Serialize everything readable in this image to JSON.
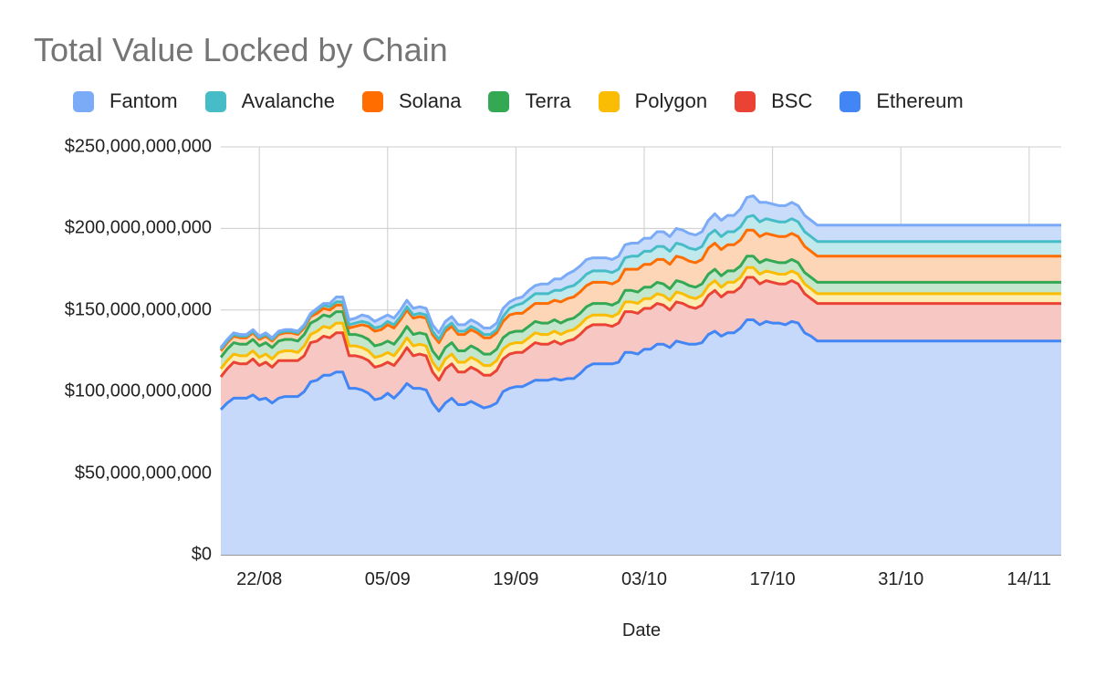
{
  "chart_data": {
    "type": "area",
    "stacked": true,
    "title": "Total Value Locked by Chain",
    "xlabel": "Date",
    "ylabel": "",
    "ylim": [
      0,
      250000000000
    ],
    "y_ticks": [
      {
        "value": 0,
        "label": "$0"
      },
      {
        "value": 50000000000,
        "label": "$50,000,000,000"
      },
      {
        "value": 100000000000,
        "label": "$100,000,000,000"
      },
      {
        "value": 150000000000,
        "label": "$150,000,000,000"
      },
      {
        "value": 200000000000,
        "label": "$200,000,000,000"
      },
      {
        "value": 250000000000,
        "label": "$250,000,000,000"
      }
    ],
    "x_ticks": [
      {
        "index": 6,
        "label": "22/08"
      },
      {
        "index": 26,
        "label": "05/09"
      },
      {
        "index": 46,
        "label": "19/09"
      },
      {
        "index": 66,
        "label": "03/10"
      },
      {
        "index": 86,
        "label": "17/10"
      },
      {
        "index": 106,
        "label": "31/10"
      },
      {
        "index": 126,
        "label": "14/11"
      }
    ],
    "n_points": 132,
    "x_start_label": "16/08",
    "x_end_label": "21/11",
    "legend_position": "top",
    "grid": true,
    "totals_in_billions": {
      "Ethereum": [
        89,
        93,
        96,
        96,
        96,
        98,
        95,
        96,
        93,
        96,
        97,
        97,
        97,
        100,
        106,
        107,
        110,
        110,
        112,
        112,
        102,
        102,
        101,
        99,
        95,
        96,
        99,
        96,
        100,
        105,
        102,
        102,
        101,
        93,
        88,
        93,
        96,
        92,
        92,
        94,
        92,
        90,
        91,
        93,
        100,
        102,
        103,
        103,
        105,
        107,
        107,
        107,
        108,
        107,
        108,
        108,
        111,
        115,
        117,
        117,
        117,
        117,
        118,
        124,
        124,
        123,
        126,
        126,
        129,
        129,
        127,
        131,
        130,
        129,
        129,
        130,
        135,
        137,
        134,
        136,
        136,
        139,
        144,
        144,
        141,
        143,
        142,
        142,
        141,
        143,
        142,
        136,
        134,
        131,
        131,
        131,
        131,
        131,
        131,
        131,
        131,
        131,
        131,
        131,
        131,
        131,
        131,
        131,
        131,
        131,
        131,
        131,
        131,
        131,
        131,
        131,
        131,
        131,
        131,
        131,
        131,
        131,
        131,
        131,
        131,
        131,
        131,
        131,
        131,
        131,
        131,
        131
      ],
      "BSC": [
        109,
        114,
        118,
        117,
        117,
        120,
        116,
        118,
        115,
        119,
        119,
        119,
        119,
        122,
        130,
        131,
        134,
        133,
        136,
        136,
        122,
        122,
        121,
        119,
        115,
        116,
        118,
        116,
        121,
        127,
        122,
        123,
        122,
        112,
        107,
        114,
        117,
        112,
        112,
        115,
        113,
        110,
        110,
        113,
        120,
        123,
        124,
        124,
        127,
        130,
        129,
        129,
        131,
        129,
        131,
        132,
        135,
        139,
        141,
        141,
        141,
        140,
        142,
        149,
        149,
        148,
        151,
        151,
        154,
        153,
        150,
        155,
        154,
        152,
        151,
        153,
        159,
        162,
        158,
        161,
        161,
        164,
        170,
        170,
        166,
        168,
        167,
        166,
        166,
        168,
        166,
        160,
        157,
        154,
        154,
        154,
        154,
        154,
        154,
        154,
        154,
        154,
        154,
        154,
        154,
        154,
        154,
        154,
        154,
        154,
        154,
        154,
        154,
        154,
        154,
        154,
        154,
        154,
        154,
        154,
        154,
        154,
        154,
        154,
        154,
        154,
        154,
        154,
        154,
        154,
        154,
        154
      ],
      "Polygon": [
        114,
        119,
        123,
        122,
        122,
        125,
        121,
        123,
        120,
        124,
        125,
        125,
        124,
        128,
        135,
        137,
        140,
        139,
        142,
        142,
        128,
        128,
        127,
        125,
        121,
        122,
        124,
        122,
        127,
        133,
        128,
        129,
        128,
        118,
        113,
        120,
        123,
        118,
        118,
        121,
        119,
        116,
        116,
        119,
        126,
        129,
        130,
        130,
        133,
        136,
        135,
        135,
        137,
        135,
        137,
        138,
        141,
        145,
        147,
        147,
        147,
        146,
        148,
        155,
        155,
        154,
        157,
        157,
        160,
        159,
        156,
        161,
        160,
        158,
        157,
        159,
        165,
        168,
        164,
        167,
        167,
        170,
        176,
        176,
        172,
        174,
        173,
        172,
        172,
        174,
        172,
        166,
        163,
        160,
        160,
        160,
        160,
        160,
        160,
        160,
        160,
        160,
        160,
        160,
        160,
        160,
        160,
        160,
        160,
        160,
        160,
        160,
        160,
        160,
        160,
        160,
        160,
        160,
        160,
        160,
        160,
        160,
        160,
        160,
        160,
        160,
        160,
        160,
        160,
        160,
        160,
        160
      ],
      "Terra": [
        121,
        126,
        130,
        129,
        129,
        132,
        128,
        130,
        127,
        131,
        132,
        132,
        131,
        135,
        142,
        144,
        147,
        146,
        149,
        149,
        135,
        135,
        134,
        132,
        128,
        129,
        131,
        129,
        134,
        140,
        135,
        136,
        135,
        125,
        120,
        127,
        130,
        125,
        125,
        128,
        126,
        123,
        123,
        126,
        133,
        136,
        137,
        137,
        140,
        143,
        142,
        142,
        144,
        142,
        144,
        145,
        148,
        152,
        154,
        154,
        154,
        153,
        155,
        162,
        162,
        161,
        164,
        164,
        167,
        166,
        163,
        168,
        167,
        165,
        164,
        166,
        172,
        175,
        171,
        174,
        174,
        177,
        183,
        183,
        179,
        181,
        180,
        179,
        179,
        181,
        179,
        173,
        170,
        167,
        167,
        167,
        167,
        167,
        167,
        167,
        167,
        167,
        167,
        167,
        167,
        167,
        167,
        167,
        167,
        167,
        167,
        167,
        167,
        167,
        167,
        167,
        167,
        167,
        167,
        167,
        167,
        167,
        167,
        167,
        167,
        167,
        167,
        167,
        167,
        167,
        167,
        167
      ],
      "Solana": [
        125,
        130,
        134,
        133,
        133,
        136,
        132,
        134,
        131,
        135,
        136,
        136,
        135,
        139,
        146,
        148,
        151,
        150,
        153,
        153,
        139,
        140,
        141,
        140,
        137,
        138,
        141,
        139,
        144,
        150,
        145,
        146,
        145,
        135,
        130,
        137,
        140,
        135,
        135,
        138,
        136,
        133,
        133,
        136,
        143,
        147,
        148,
        148,
        151,
        154,
        154,
        154,
        156,
        155,
        157,
        158,
        161,
        165,
        167,
        167,
        167,
        166,
        168,
        175,
        175,
        175,
        178,
        178,
        181,
        181,
        178,
        183,
        182,
        180,
        179,
        181,
        188,
        191,
        187,
        190,
        190,
        193,
        199,
        199,
        195,
        197,
        196,
        195,
        195,
        197,
        195,
        189,
        186,
        183,
        183,
        183,
        183,
        183,
        183,
        183,
        183,
        183,
        183,
        183,
        183,
        183,
        183,
        183,
        183,
        183,
        183,
        183,
        183,
        183,
        183,
        183,
        183,
        183,
        183,
        183,
        183,
        183,
        183,
        183,
        183,
        183,
        183,
        183,
        183,
        183,
        183,
        183
      ],
      "Avalanche": [
        126,
        131,
        135,
        134,
        134,
        137,
        133,
        135,
        132,
        136,
        137,
        137,
        136,
        140,
        147,
        150,
        153,
        152,
        155,
        155,
        141,
        142,
        143,
        142,
        139,
        140,
        143,
        141,
        146,
        152,
        147,
        148,
        147,
        137,
        132,
        139,
        142,
        137,
        137,
        140,
        138,
        135,
        135,
        138,
        146,
        151,
        153,
        154,
        157,
        160,
        160,
        160,
        162,
        162,
        164,
        165,
        168,
        172,
        174,
        174,
        174,
        173,
        175,
        182,
        183,
        183,
        186,
        186,
        189,
        189,
        186,
        191,
        190,
        188,
        187,
        189,
        196,
        199,
        195,
        198,
        198,
        201,
        207,
        208,
        204,
        206,
        205,
        204,
        204,
        206,
        204,
        198,
        195,
        192,
        192,
        192,
        192,
        192,
        192,
        192,
        192,
        192,
        192,
        192,
        192,
        192,
        192,
        192,
        192,
        192,
        192,
        192,
        192,
        192,
        192,
        192,
        192,
        192,
        192,
        192,
        192,
        192,
        192,
        192,
        192,
        192,
        192,
        192,
        192,
        192,
        192,
        192
      ],
      "Fantom": [
        127,
        132,
        136,
        135,
        135,
        138,
        134,
        136,
        133,
        137,
        138,
        138,
        137,
        141,
        148,
        151,
        154,
        154,
        158,
        158,
        144,
        145,
        147,
        146,
        143,
        145,
        147,
        145,
        150,
        156,
        151,
        152,
        151,
        141,
        136,
        143,
        146,
        141,
        141,
        144,
        142,
        139,
        139,
        142,
        151,
        155,
        157,
        158,
        162,
        165,
        166,
        166,
        169,
        169,
        172,
        174,
        177,
        181,
        182,
        182,
        182,
        181,
        183,
        190,
        191,
        191,
        194,
        194,
        198,
        198,
        195,
        200,
        199,
        197,
        196,
        198,
        205,
        209,
        205,
        208,
        208,
        212,
        219,
        220,
        216,
        216,
        215,
        214,
        214,
        216,
        214,
        208,
        205,
        202,
        202,
        202,
        202,
        202,
        202,
        202,
        202,
        202,
        202,
        202,
        202,
        202,
        202,
        202,
        202,
        202,
        202,
        202,
        202,
        202,
        202,
        202,
        202,
        202,
        202,
        202,
        202,
        202,
        202,
        202,
        202,
        202,
        202,
        202,
        202,
        202,
        202,
        202
      ]
    },
    "series": [
      {
        "name": "Fantom",
        "color": "#7baaf7",
        "fill": "#c9dcfa"
      },
      {
        "name": "Avalanche",
        "color": "#46bdc6",
        "fill": "#bfe9ec"
      },
      {
        "name": "Solana",
        "color": "#ff6d01",
        "fill": "#fdd6b8"
      },
      {
        "name": "Terra",
        "color": "#34a853",
        "fill": "#c3e6cc"
      },
      {
        "name": "Polygon",
        "color": "#fbbc04",
        "fill": "#fdedb4"
      },
      {
        "name": "BSC",
        "color": "#ea4335",
        "fill": "#f7c7c3"
      },
      {
        "name": "Ethereum",
        "color": "#4285f4",
        "fill": "#c6d9fb"
      }
    ]
  }
}
